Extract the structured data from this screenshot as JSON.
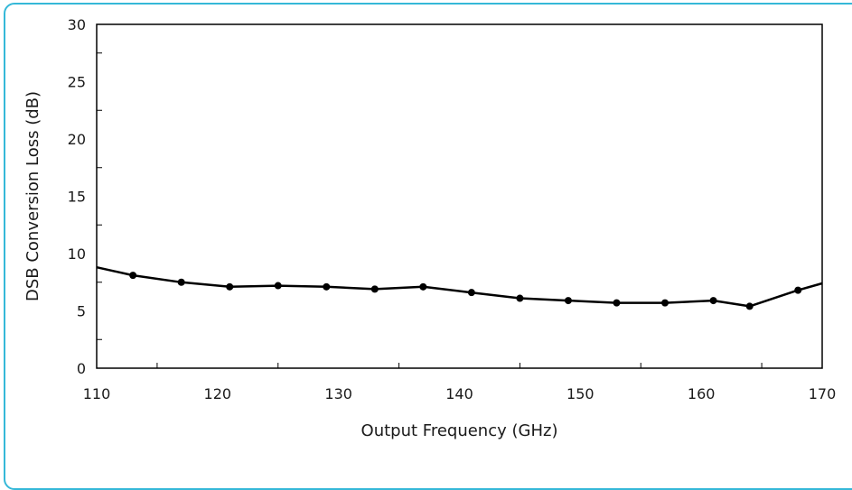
{
  "frame_color": "#35b8d8",
  "chart_data": {
    "type": "line",
    "xlabel": "Output Frequency (GHz)",
    "ylabel": "DSB Conversion Loss (dB)",
    "xlim": [
      110,
      170
    ],
    "ylim": [
      0,
      30
    ],
    "x_ticks": [
      110,
      120,
      130,
      140,
      150,
      160,
      170
    ],
    "y_ticks": [
      0,
      5,
      10,
      15,
      20,
      25,
      30
    ],
    "grid": false,
    "line_color": "#000000",
    "series": [
      {
        "x": [
          110,
          113,
          117,
          121,
          125,
          129,
          133,
          137,
          141,
          145,
          149,
          153,
          157,
          161,
          164,
          168,
          170
        ],
        "y": [
          8.8,
          8.1,
          7.5,
          7.1,
          7.2,
          7.1,
          6.9,
          7.1,
          6.6,
          6.1,
          5.9,
          5.7,
          5.7,
          5.9,
          5.4,
          6.8,
          7.4
        ],
        "markers": [
          false,
          true,
          true,
          true,
          true,
          true,
          true,
          true,
          true,
          true,
          true,
          true,
          true,
          true,
          true,
          true,
          false
        ]
      }
    ]
  }
}
